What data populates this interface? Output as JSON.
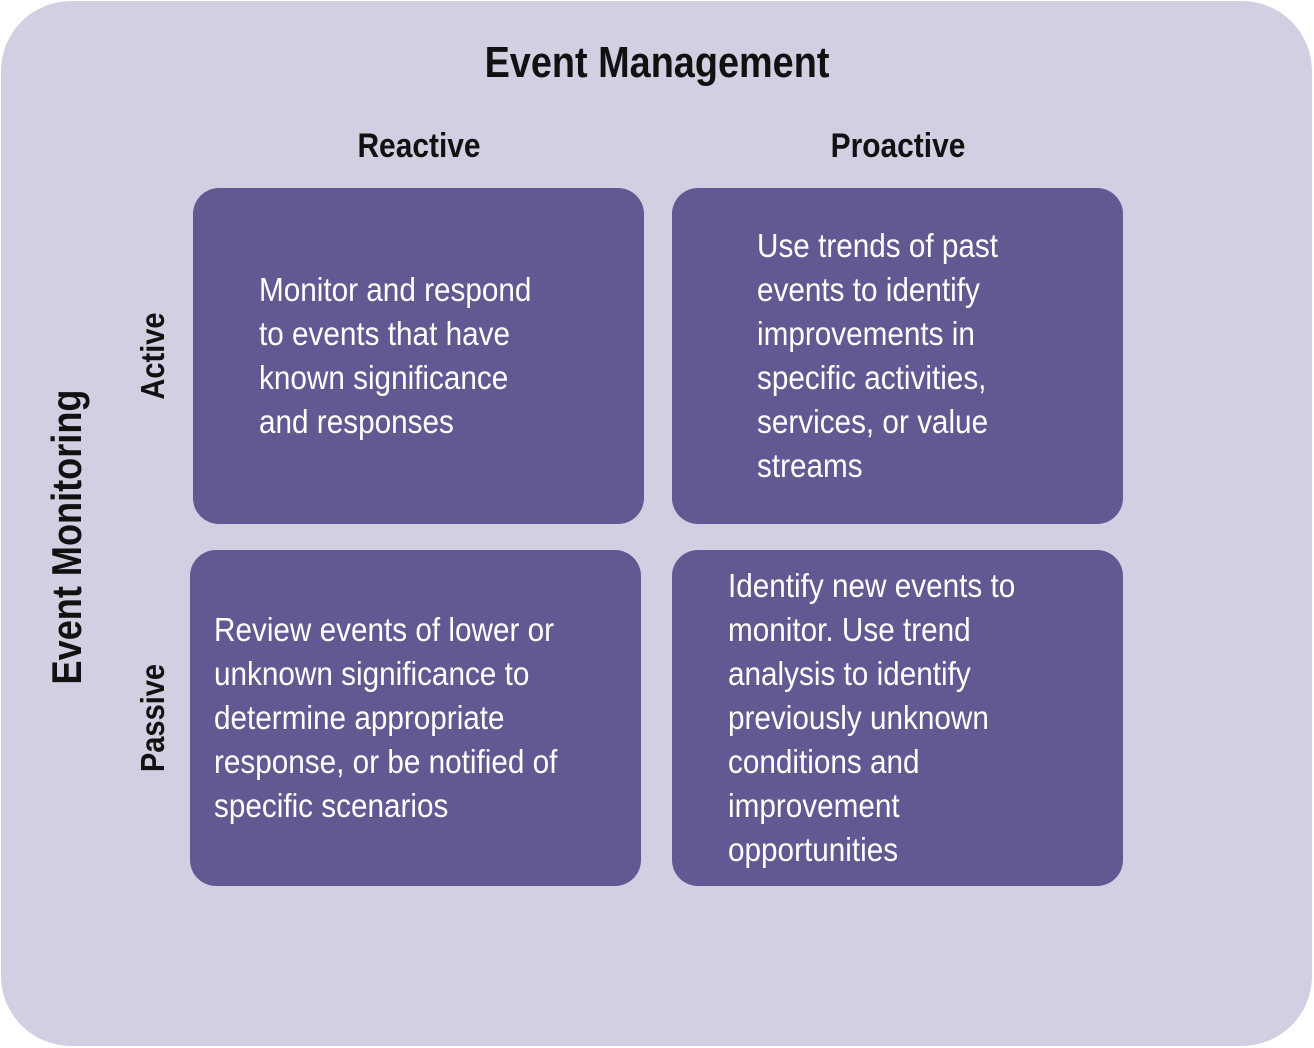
{
  "title": "Event Management",
  "columns": {
    "reactive": "Reactive",
    "proactive": "Proactive"
  },
  "rows": {
    "title": "Event Monitoring",
    "active": "Active",
    "passive": "Passive"
  },
  "cells": {
    "active_reactive": "Monitor and respond\nto events that have\nknown significance\nand responses",
    "active_proactive": "Use trends of past\nevents to identify\nimprovements in\nspecific activities,\nservices, or value\nstreams",
    "passive_reactive": "Review events of lower or\nunknown significance to\ndetermine appropriate\nresponse, or be notified of\nspecific scenarios",
    "passive_proactive": "Identify new events to\nmonitor. Use trend\nanalysis to identify\npreviously unknown\nconditions and\nimprovement\nopportunities"
  },
  "colors": {
    "background": "#d3cfe2",
    "cell": "#645893",
    "cell_text": "#ffffff",
    "label_text": "#111111"
  }
}
